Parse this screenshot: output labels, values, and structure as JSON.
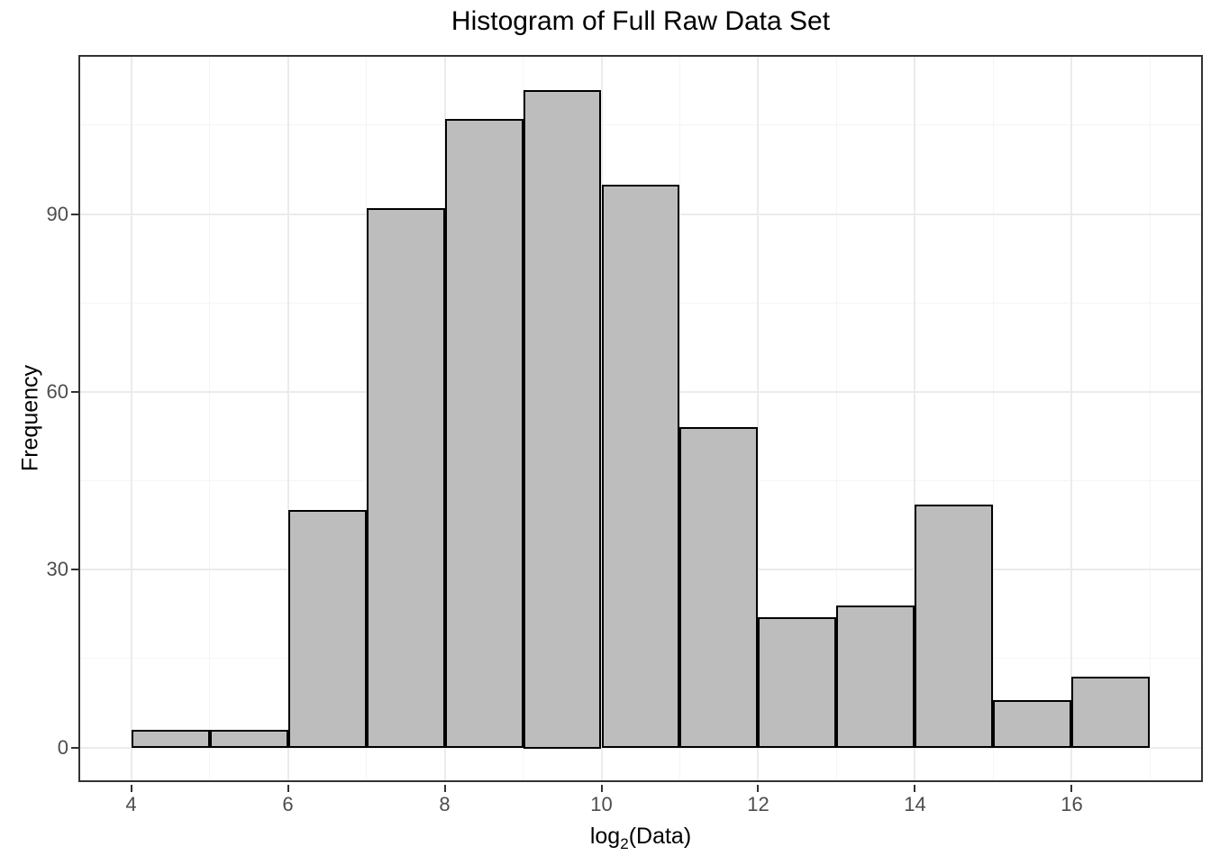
{
  "chart_data": {
    "type": "bar",
    "subtype": "histogram",
    "title": "Histogram of Full Raw Data Set",
    "ylabel": "Frequency",
    "xlabel": {
      "prefix": "log",
      "sub": "2",
      "suffix": "(Data)"
    },
    "bin_edges": [
      4,
      5,
      6,
      7,
      8,
      9,
      10,
      11,
      12,
      13,
      14,
      15,
      16,
      17
    ],
    "counts": [
      3,
      3,
      40,
      91,
      106,
      111,
      95,
      54,
      22,
      24,
      41,
      8,
      12
    ],
    "x_ticks": [
      4,
      6,
      8,
      10,
      12,
      14,
      16
    ],
    "y_ticks": [
      0,
      30,
      60,
      90
    ],
    "x_minor_gridlines": [
      5,
      7,
      9,
      11,
      13,
      15,
      17
    ],
    "y_minor_gridlines": [
      15,
      45,
      75,
      105
    ],
    "x_domain": [
      3.35,
      17.65
    ],
    "y_domain": [
      -5.55,
      116.55
    ],
    "grid": "on",
    "legend": "none",
    "colors": {
      "bar_fill": "#bdbdbd",
      "bar_stroke": "#000000",
      "panel_border": "#333333",
      "grid_major": "#ebebeb",
      "grid_minor": "#f5f5f5",
      "tick": "#333333",
      "tick_label": "#4d4d4d",
      "title": "#000000",
      "background": "#ffffff"
    }
  }
}
